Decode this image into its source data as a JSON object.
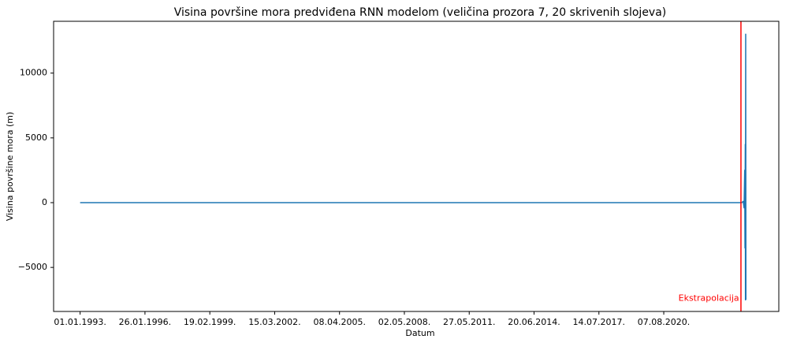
{
  "chart_data": {
    "type": "line",
    "title": "Visina površine mora predviđena RNN modelom (veličina prozora 7, 20 skrivenih slojeva)",
    "xlabel": "Datum",
    "ylabel": "Visina površine mora (m)",
    "x_tick_labels": [
      "01.01.1993.",
      "26.01.1996.",
      "19.02.1999.",
      "15.03.2002.",
      "08.04.2005.",
      "02.05.2008.",
      "27.05.2011.",
      "20.06.2014.",
      "14.07.2017.",
      "07.08.2020."
    ],
    "x_tick_dates": [
      "1993-01-01",
      "1996-01-26",
      "1999-02-19",
      "2002-03-15",
      "2005-04-08",
      "2008-05-02",
      "2011-05-27",
      "2014-06-20",
      "2017-07-14",
      "2020-08-07"
    ],
    "y_ticks": [
      -5000,
      0,
      5000,
      10000
    ],
    "y_tick_labels": [
      "−5000",
      "0",
      "5000",
      "10000"
    ],
    "xlim": [
      "1991-10-01",
      "2026-01-15"
    ],
    "ylim": [
      -8400,
      14000
    ],
    "grid": false,
    "series": [
      {
        "color": "#1f77b4",
        "points": [
          [
            "1993-01-01",
            0
          ],
          [
            "1996-01-26",
            0
          ],
          [
            "1999-02-19",
            0
          ],
          [
            "2002-03-15",
            0
          ],
          [
            "2005-04-08",
            0
          ],
          [
            "2008-05-02",
            0
          ],
          [
            "2011-05-27",
            0
          ],
          [
            "2014-06-20",
            0
          ],
          [
            "2017-07-14",
            0
          ],
          [
            "2020-08-07",
            0
          ],
          [
            "2023-01-01",
            0
          ],
          [
            "2024-03-01",
            0
          ],
          [
            "2024-04-15",
            0
          ],
          [
            "2024-05-10",
            100
          ],
          [
            "2024-05-25",
            -400
          ],
          [
            "2024-06-05",
            2500
          ],
          [
            "2024-06-10",
            -3500
          ],
          [
            "2024-06-15",
            4500
          ],
          [
            "2024-06-18",
            -7500
          ],
          [
            "2024-06-22",
            13000
          ],
          [
            "2024-06-26",
            -7500
          ]
        ]
      }
    ],
    "vline": {
      "x": "2024-04-01",
      "color": "#ff0000"
    },
    "annotation": {
      "text": "Ekstrapolacija",
      "color": "#ff0000",
      "x": "2024-03-01",
      "y": -7400
    }
  }
}
